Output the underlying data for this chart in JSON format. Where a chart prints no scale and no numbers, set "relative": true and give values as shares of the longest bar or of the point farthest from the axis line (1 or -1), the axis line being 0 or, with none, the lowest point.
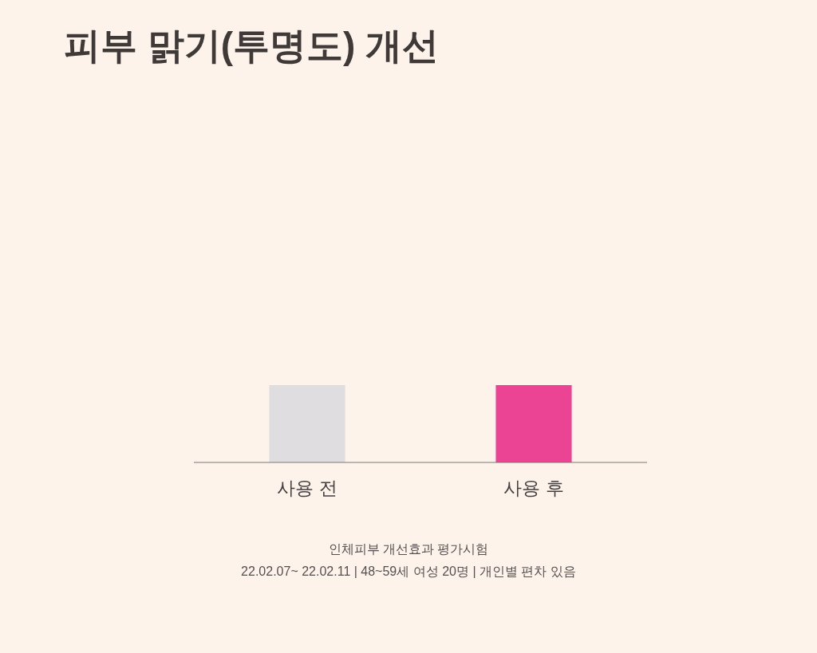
{
  "chart_data": {
    "type": "bar",
    "title": "피부 맑기(투명도) 개선",
    "categories": [
      "사용 전",
      "사용 후"
    ],
    "values": [
      1,
      1
    ],
    "colors": [
      "#dfdde0",
      "#ec4495"
    ],
    "relative": true,
    "annotations": [
      "인체피부 개선효과 평가시험",
      "22.02.07~ 22.02.11 | 48~59세 여성 20명 | 개인별 편차 있음"
    ]
  }
}
